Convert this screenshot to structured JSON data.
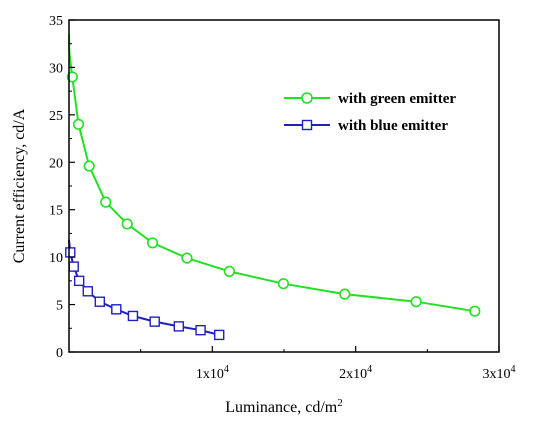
{
  "chart_data": {
    "type": "line",
    "xlabel": "Luminance, cd/m",
    "xlabel_sup": "2",
    "ylabel": "Current efficiency, cd/A",
    "xlim": [
      0,
      30000
    ],
    "ylim": [
      0,
      35
    ],
    "x_ticks": [
      {
        "value": 10000,
        "mantissa": "1x10",
        "exponent": "4"
      },
      {
        "value": 20000,
        "mantissa": "2x10",
        "exponent": "4"
      },
      {
        "value": 30000,
        "mantissa": "3x10",
        "exponent": "4"
      }
    ],
    "y_ticks": [
      0,
      5,
      10,
      15,
      20,
      25,
      30,
      35
    ],
    "grid": false,
    "legend_position": "top-right",
    "series": [
      {
        "name": "with green emitter",
        "color": "#22e022",
        "marker": "circle",
        "x": [
          0,
          30,
          230,
          660,
          1410,
          2560,
          4060,
          5830,
          8230,
          11190,
          14960,
          19240,
          24220,
          28310
        ],
        "y": [
          33.5,
          31.5,
          29.0,
          24.0,
          19.6,
          15.8,
          13.5,
          11.5,
          9.9,
          8.5,
          7.2,
          6.1,
          5.3,
          4.3
        ],
        "marker_from_index": 2
      },
      {
        "name": "with blue emitter",
        "color": "#2020c0",
        "marker": "square",
        "x": [
          0,
          90,
          330,
          710,
          1310,
          2150,
          3300,
          4460,
          5980,
          7660,
          9180,
          10480
        ],
        "y": [
          11.8,
          10.5,
          9.0,
          7.5,
          6.4,
          5.3,
          4.5,
          3.8,
          3.2,
          2.7,
          2.3,
          1.8
        ],
        "marker_from_index": 1
      }
    ]
  }
}
